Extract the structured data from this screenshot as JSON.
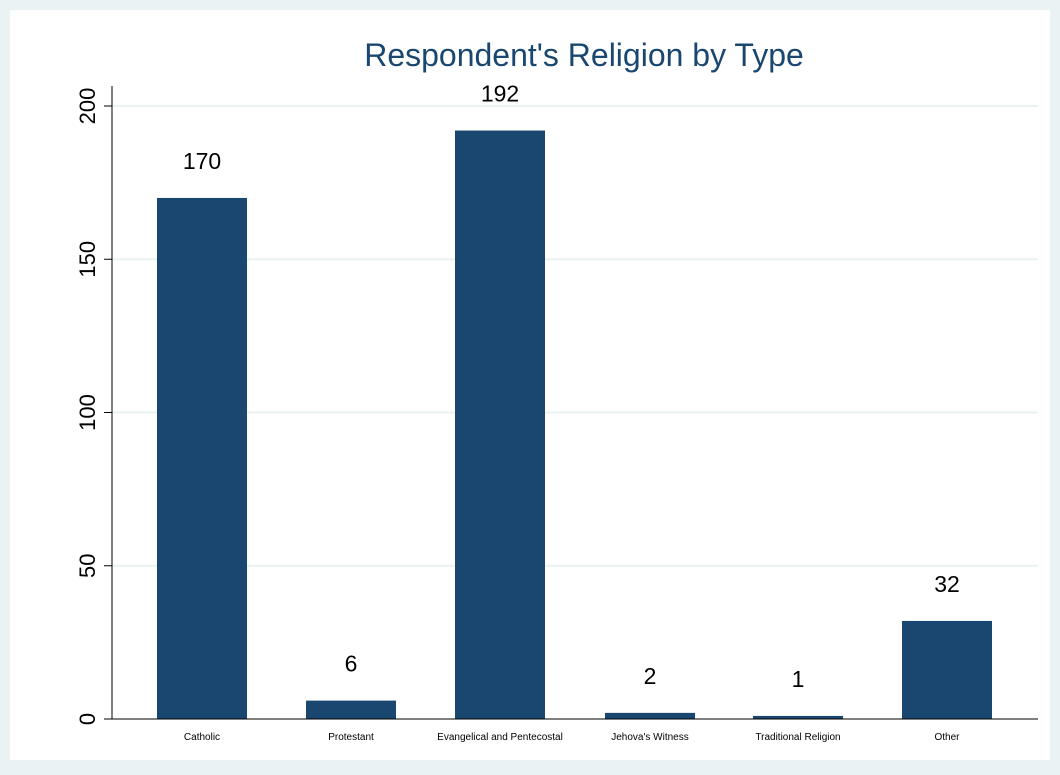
{
  "chart_data": {
    "type": "bar",
    "title": "Respondent's Religion by Type",
    "xlabel": "",
    "ylabel": "",
    "categories": [
      "Catholic",
      "Protestant",
      "Evangelical and Pentecostal",
      "Jehova's Witness",
      "Traditional Religion",
      "Other"
    ],
    "values": [
      170,
      6,
      192,
      2,
      1,
      32
    ],
    "data_labels": [
      "170",
      "6",
      "192",
      "2",
      "1",
      "32"
    ],
    "ylim": [
      0,
      200
    ],
    "yticks": [
      0,
      50,
      100,
      150,
      200
    ],
    "ytick_labels": [
      "0",
      "50",
      "100",
      "150",
      "200"
    ],
    "grid": true,
    "legend": "none",
    "colors": {
      "bar": "#1a476f",
      "title": "#1a476f",
      "outer_background": "#eaf2f3",
      "plot_background": "#ffffff",
      "grid": "#eaf2f3",
      "axis": "#000000"
    }
  }
}
